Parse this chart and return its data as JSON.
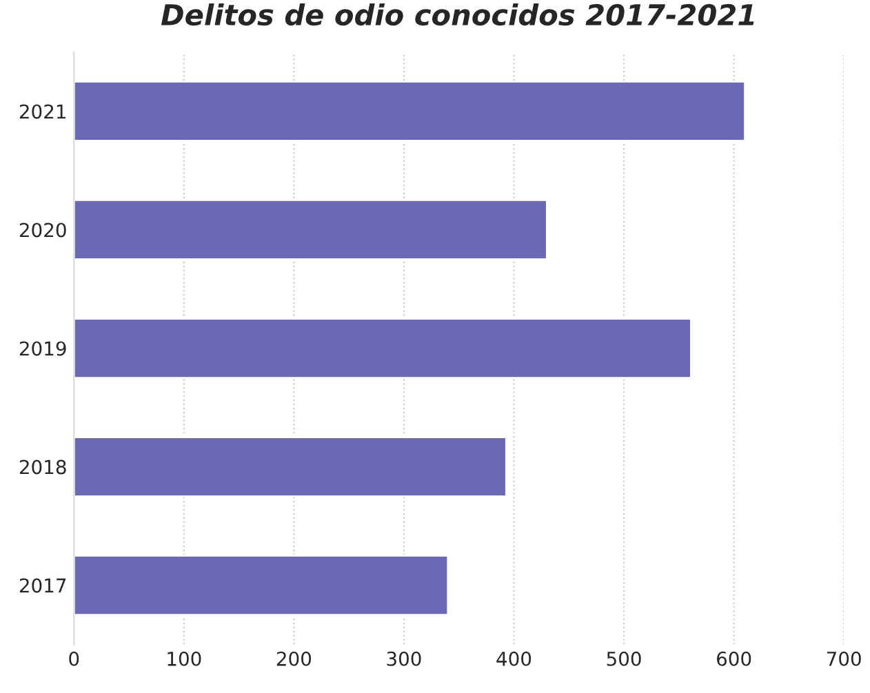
{
  "chart_data": {
    "type": "bar",
    "orientation": "horizontal",
    "title": "Delitos de odio conocidos 2017-2021",
    "categories": [
      "2021",
      "2020",
      "2019",
      "2018",
      "2017"
    ],
    "values": [
      610,
      430,
      561,
      393,
      340
    ],
    "color": "#6b69b3",
    "xlim": [
      0,
      700
    ],
    "xticks": [
      0,
      100,
      200,
      300,
      400,
      500,
      600,
      700
    ],
    "grid": "x"
  }
}
